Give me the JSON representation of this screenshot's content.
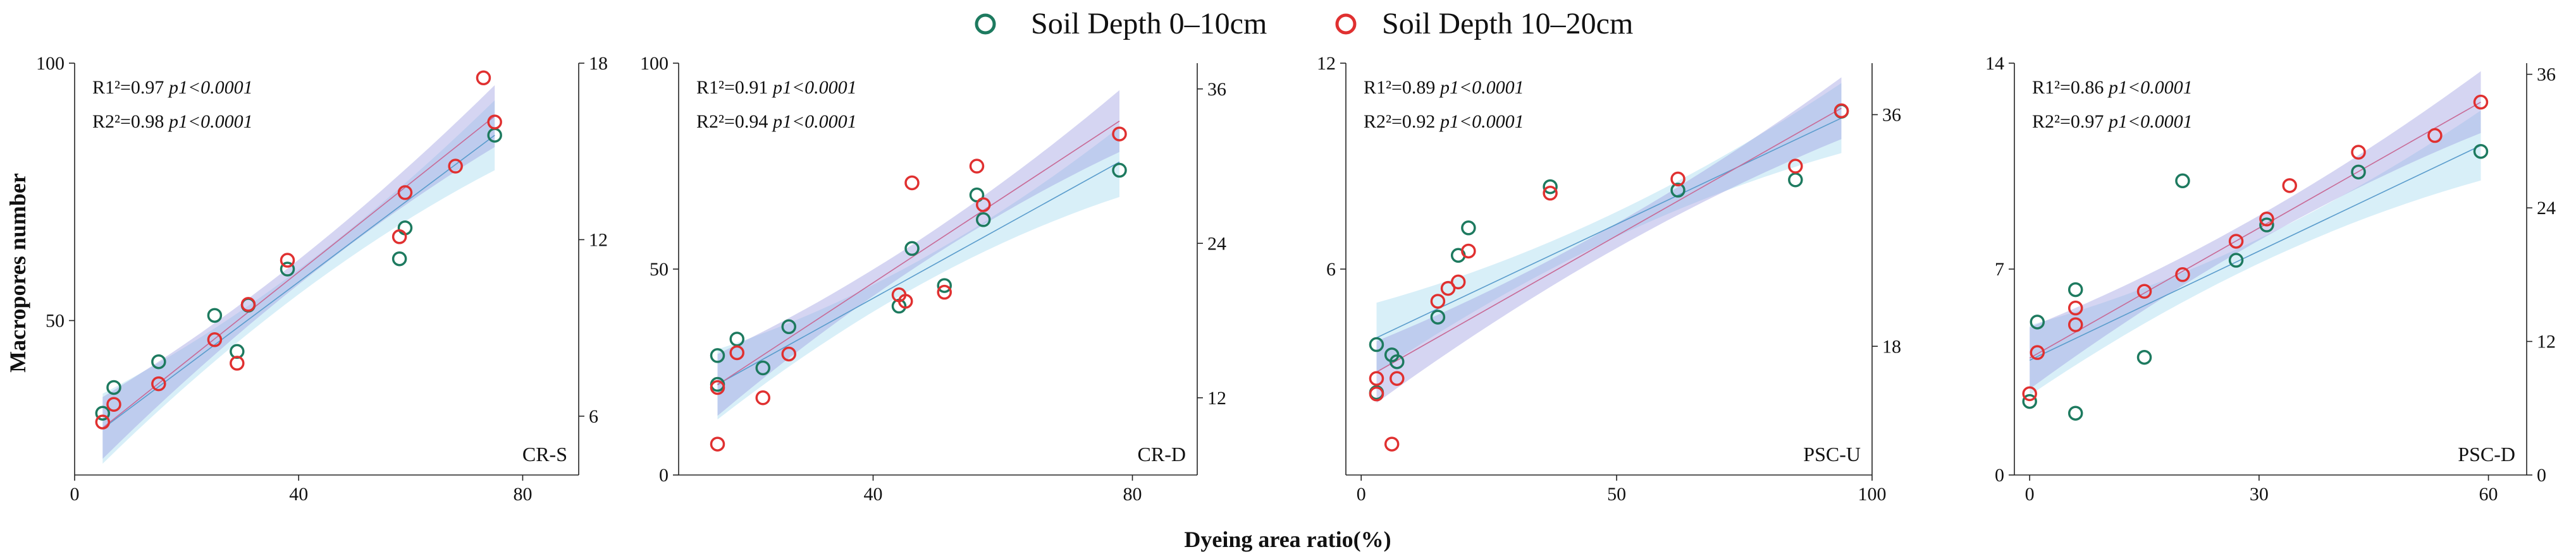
{
  "figure": {
    "ylabel": "Macropores number",
    "xlabel": "Dyeing area ratio(%)",
    "legend": [
      {
        "label": "Soil Depth 0–10cm",
        "color": "#1d7a5f"
      },
      {
        "label": "Soil Depth 10–20cm",
        "color": "#e03030"
      }
    ],
    "colors": {
      "series1": "#1d7a5f",
      "series2": "#e03030",
      "band1": "#a8dcef",
      "band2": "#9a9ae0",
      "line1": "#5a9ccc",
      "line2": "#c86a96"
    }
  },
  "chart_data": [
    {
      "type": "scatter",
      "label": "CR-S",
      "xlim": [
        0,
        90
      ],
      "xticks": [
        0,
        40,
        80
      ],
      "ylim_left": [
        20,
        100
      ],
      "yticks_left": [
        50,
        100
      ],
      "ylim_right": [
        4,
        18
      ],
      "yticks_right": [
        6,
        12,
        18
      ],
      "stats": [
        {
          "r2_label": "R1²=0.97",
          "p_label": "p1<0.0001"
        },
        {
          "r2_label": "R2²=0.98",
          "p_label": "p1<0.0001"
        }
      ],
      "series": [
        {
          "name": "Soil Depth 0–10cm",
          "axis": "left",
          "x": [
            5,
            7,
            15,
            25,
            29,
            31,
            38,
            58,
            59,
            75
          ],
          "y": [
            32,
            37,
            42,
            51,
            44,
            53,
            60,
            62,
            68,
            86
          ]
        },
        {
          "name": "Soil Depth 10–20cm",
          "axis": "right",
          "x": [
            5,
            7,
            15,
            25,
            29,
            31,
            38,
            58,
            59,
            68,
            73,
            75
          ],
          "y": [
            5.8,
            6.4,
            7.1,
            8.6,
            7.8,
            9.8,
            11.3,
            12.1,
            13.6,
            14.5,
            17.5,
            16.0
          ]
        }
      ],
      "fit": [
        {
          "axis": "left",
          "x": [
            5,
            75
          ],
          "y": [
            29,
            86
          ]
        },
        {
          "axis": "right",
          "x": [
            5,
            75
          ],
          "y": [
            5.6,
            16.2
          ]
        }
      ]
    },
    {
      "type": "scatter",
      "label": "CR-D",
      "xlim": [
        10,
        90
      ],
      "xticks": [
        40,
        80
      ],
      "ylim_left": [
        0,
        100
      ],
      "yticks_left": [
        0,
        50,
        100
      ],
      "ylim_right": [
        6,
        38
      ],
      "yticks_right": [
        12,
        24,
        36
      ],
      "stats": [
        {
          "r2_label": "R1²=0.91",
          "p_label": "p1<0.0001"
        },
        {
          "r2_label": "R2²=0.94",
          "p_label": "p1<0.0001"
        }
      ],
      "series": [
        {
          "name": "Soil Depth 0–10cm",
          "axis": "left",
          "x": [
            16,
            16,
            19,
            23,
            27,
            44,
            46,
            51,
            56,
            57,
            78
          ],
          "y": [
            29,
            22,
            33,
            26,
            36,
            41,
            55,
            46,
            68,
            62,
            74
          ]
        },
        {
          "name": "Soil Depth 10–20cm",
          "axis": "right",
          "x": [
            16,
            16,
            19,
            23,
            27,
            44,
            45,
            46,
            51,
            56,
            57,
            78
          ],
          "y": [
            12.8,
            8.4,
            15.5,
            12.0,
            15.4,
            20.0,
            19.5,
            28.7,
            20.2,
            30.0,
            27.0,
            32.5
          ]
        }
      ],
      "fit": [
        {
          "axis": "left",
          "x": [
            16,
            78
          ],
          "y": [
            22,
            76
          ]
        },
        {
          "axis": "right",
          "x": [
            16,
            78
          ],
          "y": [
            13.0,
            33.5
          ]
        }
      ]
    },
    {
      "type": "scatter",
      "label": "PSC-U",
      "xlim": [
        -3,
        100
      ],
      "xticks": [
        0,
        50,
        100
      ],
      "ylim_left": [
        0,
        12
      ],
      "yticks_left": [
        6,
        12
      ],
      "ylim_right": [
        8,
        40
      ],
      "yticks_right": [
        18,
        36
      ],
      "stats": [
        {
          "r2_label": "R1²=0.89",
          "p_label": "p1<0.0001"
        },
        {
          "r2_label": "R2²=0.92",
          "p_label": "p1<0.0001"
        }
      ],
      "series": [
        {
          "name": "Soil Depth 0–10cm",
          "axis": "left",
          "x": [
            3,
            3,
            6,
            7,
            15,
            19,
            21,
            37,
            62,
            85,
            94
          ],
          "y": [
            3.8,
            2.4,
            3.5,
            3.3,
            4.6,
            6.4,
            7.2,
            8.4,
            8.3,
            8.6,
            10.6
          ]
        },
        {
          "name": "Soil Depth 10–20cm",
          "axis": "right",
          "x": [
            3,
            3,
            6,
            7,
            15,
            17,
            19,
            21,
            37,
            62,
            85,
            94
          ],
          "y": [
            15.5,
            14.3,
            10.4,
            15.5,
            21.5,
            22.5,
            23.0,
            25.4,
            29.9,
            31.0,
            32.0,
            36.3
          ]
        }
      ],
      "fit": [
        {
          "axis": "left",
          "x": [
            3,
            94
          ],
          "y": [
            4.0,
            10.4
          ]
        },
        {
          "axis": "right",
          "x": [
            3,
            94
          ],
          "y": [
            16.0,
            36.5
          ]
        }
      ]
    },
    {
      "type": "scatter",
      "label": "PSC-D",
      "xlim": [
        -2,
        65
      ],
      "xticks": [
        0,
        30,
        60
      ],
      "ylim_left": [
        0,
        14
      ],
      "yticks_left": [
        0,
        7,
        14
      ],
      "ylim_right": [
        0,
        37
      ],
      "yticks_right": [
        0,
        12,
        24,
        36
      ],
      "stats": [
        {
          "r2_label": "R1²=0.86",
          "p_label": "p1<0.0001"
        },
        {
          "r2_label": "R2²=0.97",
          "p_label": "p1<0.0001"
        }
      ],
      "series": [
        {
          "name": "Soil Depth 0–10cm",
          "axis": "left",
          "x": [
            0,
            1,
            6,
            6,
            15,
            20,
            27,
            31,
            43,
            59
          ],
          "y": [
            2.5,
            5.2,
            6.3,
            2.1,
            4.0,
            10.0,
            7.3,
            8.5,
            10.3,
            11.0
          ]
        },
        {
          "name": "Soil Depth 10–20cm",
          "axis": "right",
          "x": [
            0,
            1,
            6,
            6,
            15,
            20,
            27,
            31,
            34,
            43,
            53,
            59
          ],
          "y": [
            7.3,
            11.0,
            15.0,
            13.5,
            16.5,
            18.0,
            21.0,
            23.0,
            26.0,
            29.0,
            30.5,
            33.5
          ]
        }
      ],
      "fit": [
        {
          "axis": "left",
          "x": [
            0,
            59
          ],
          "y": [
            3.9,
            11.2
          ]
        },
        {
          "axis": "right",
          "x": [
            0,
            59
          ],
          "y": [
            10.5,
            33.5
          ]
        }
      ]
    }
  ]
}
